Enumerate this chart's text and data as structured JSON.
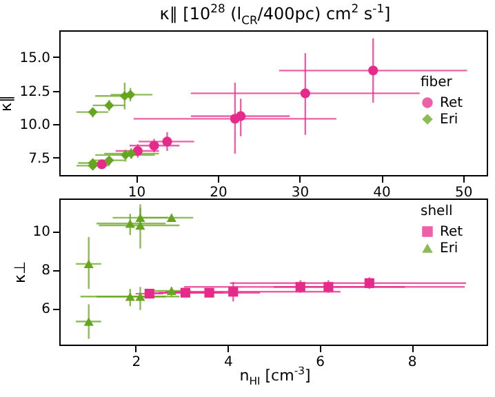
{
  "chart_data": [
    {
      "type": "scatter",
      "title": "κ∥ [10$^{28}$ (l$_{CR}$/400pc) cm$^{2}$ s$^{-1}$]",
      "ylabel": "κ∥",
      "legend_title": "fiber",
      "legend": "right",
      "grid": false,
      "xlim": [
        0.6,
        52.9
      ],
      "xticks": [
        10,
        20,
        30,
        40,
        50
      ],
      "ylim": [
        6.2,
        17.0
      ],
      "yticks": [
        7.5,
        {
          "value": 10,
          "label": "10.0"
        },
        12.5,
        {
          "value": 15,
          "label": "15.0"
        }
      ],
      "series": [
        {
          "name": "Ret",
          "color": "#e7298a",
          "marker": "circle",
          "x": [
            5.8,
            10.2,
            12.2,
            13.8,
            22.1,
            22.8,
            30.7,
            39.0
          ],
          "values": [
            7.0,
            8.0,
            8.4,
            8.7,
            10.4,
            10.6,
            12.3,
            14.0
          ],
          "xerrors": [
            [
              4.8,
              6.8
            ],
            [
              7.5,
              12.8
            ],
            [
              9.2,
              15.3
            ],
            [
              10.3,
              17.1
            ],
            [
              9.7,
              34.5
            ],
            [
              16.7,
              28.8
            ],
            [
              16.7,
              44.7
            ],
            [
              27.5,
              50.5
            ]
          ],
          "errors": [
            [
              6.8,
              7.2
            ],
            [
              7.5,
              8.5
            ],
            [
              7.9,
              8.9
            ],
            [
              8.0,
              9.4
            ],
            [
              7.8,
              13.1
            ],
            [
              9.1,
              11.9
            ],
            [
              9.2,
              15.3
            ],
            [
              11.6,
              16.4
            ]
          ]
        },
        {
          "name": "Eri",
          "color": "#66a61e",
          "marker": "diamond",
          "x": [
            4.7,
            4.7,
            6.7,
            8.7,
            9.4,
            4.7,
            6.7,
            8.6,
            9.3
          ],
          "values": [
            6.9,
            7.1,
            7.3,
            7.7,
            7.8,
            10.9,
            11.4,
            12.1,
            12.2
          ],
          "xerrors": [
            [
              2.7,
              6.6
            ],
            [
              2.9,
              6.5
            ],
            [
              4.7,
              8.6
            ],
            [
              5.0,
              12.3
            ],
            [
              6.1,
              12.8
            ],
            [
              2.7,
              6.6
            ],
            [
              4.7,
              8.6
            ],
            [
              5.0,
              9.7
            ],
            [
              6.9,
              12.0
            ]
          ],
          "errors": [
            [
              6.6,
              7.1
            ],
            [
              6.8,
              7.3
            ],
            [
              6.9,
              7.6
            ],
            [
              7.2,
              8.1
            ],
            [
              7.4,
              8.2
            ],
            [
              10.5,
              11.2
            ],
            [
              11.0,
              11.8
            ],
            [
              11.1,
              13.1
            ],
            [
              11.7,
              12.7
            ]
          ]
        }
      ]
    },
    {
      "type": "scatter",
      "xlabel": "n$_{HI}$ [cm$^{-3}$]",
      "ylabel": "κ⊥",
      "legend_title": "shell",
      "legend": "top right",
      "grid": false,
      "xlim": [
        0.34,
        9.63
      ],
      "xticks": [
        2,
        4,
        6,
        8
      ],
      "ylim": [
        4.1,
        11.7
      ],
      "yticks": [
        6,
        8,
        10
      ],
      "series": [
        {
          "name": "Ret",
          "color": "#e7298a",
          "marker": "square",
          "x": [
            2.3,
            3.08,
            3.6,
            4.12,
            5.58,
            6.19,
            7.08
          ],
          "values": [
            6.75,
            6.8,
            6.8,
            6.85,
            7.1,
            7.1,
            7.3
          ],
          "xerrors": [
            [
              2.0,
              2.6
            ],
            [
              2.3,
              3.9
            ],
            [
              2.5,
              4.7
            ],
            [
              2.65,
              6.45
            ],
            [
              3.05,
              7.85
            ],
            [
              5.0,
              9.15
            ],
            [
              4.05,
              9.18
            ]
          ],
          "errors": [
            [
              6.6,
              6.9
            ],
            [
              6.6,
              7.0
            ],
            [
              6.6,
              7.0
            ],
            [
              6.35,
              7.35
            ],
            [
              6.8,
              7.45
            ],
            [
              6.8,
              7.45
            ],
            [
              7.0,
              7.6
            ]
          ]
        },
        {
          "name": "Eri",
          "color": "#66a61e",
          "marker": "triangle",
          "x": [
            0.98,
            0.98,
            1.88,
            1.88,
            2.1,
            2.1,
            2.1,
            2.78,
            2.78
          ],
          "values": [
            5.3,
            8.3,
            6.6,
            10.4,
            6.6,
            10.3,
            10.7,
            6.9,
            10.7
          ],
          "xerrors": [
            [
              0.7,
              1.25
            ],
            [
              0.7,
              1.25
            ],
            [
              1.15,
              2.65
            ],
            [
              1.15,
              2.65
            ],
            [
              0.8,
              2.95
            ],
            [
              1.2,
              2.95
            ],
            [
              1.5,
              2.7
            ],
            [
              2.4,
              3.2
            ],
            [
              2.05,
              3.25
            ]
          ],
          "errors": [
            [
              4.4,
              6.2
            ],
            [
              7.0,
              9.7
            ],
            [
              6.1,
              7.0
            ],
            [
              9.8,
              10.9
            ],
            [
              5.9,
              7.1
            ],
            [
              9.1,
              11.4
            ],
            [
              10.2,
              11.2
            ],
            [
              6.6,
              7.1
            ],
            [
              10.5,
              10.9
            ]
          ]
        }
      ]
    }
  ]
}
